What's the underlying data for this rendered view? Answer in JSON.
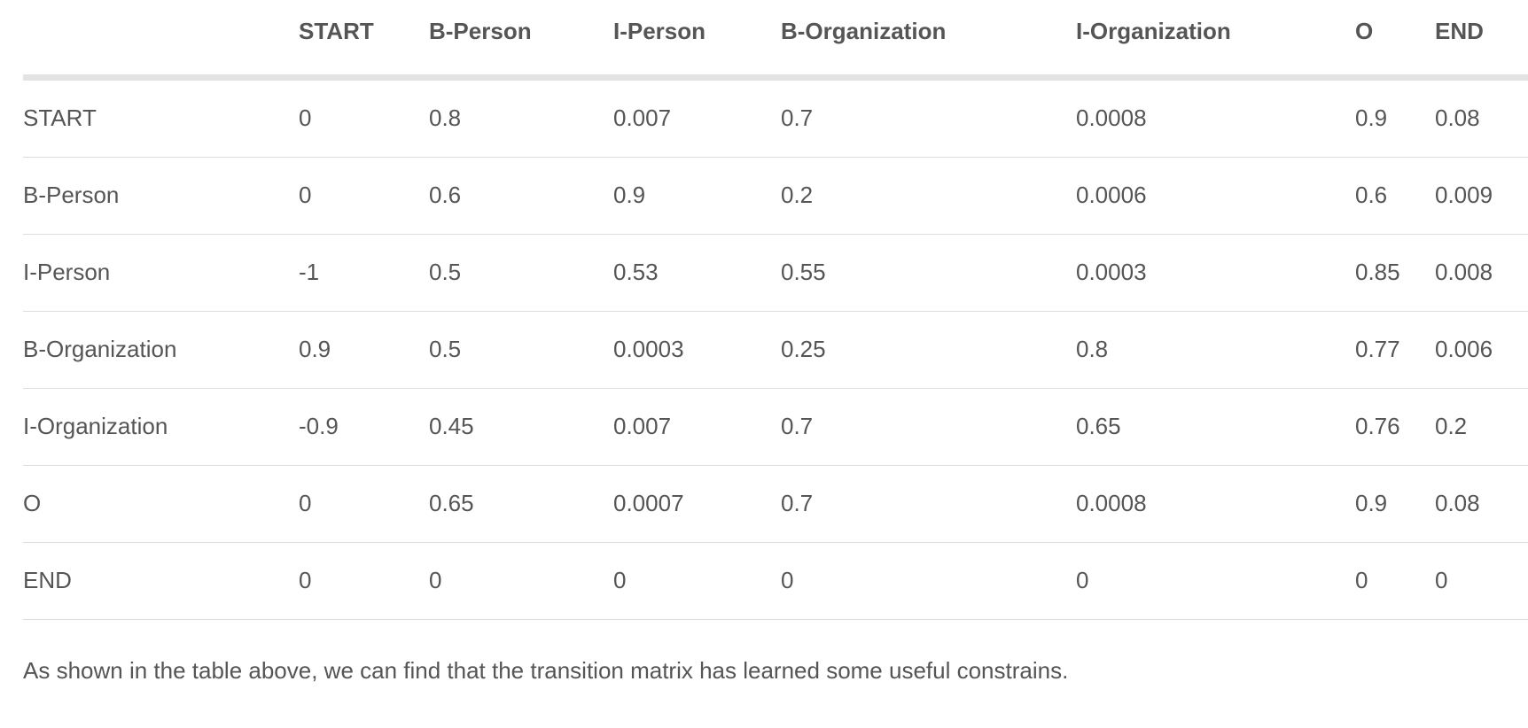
{
  "table": {
    "headers": [
      "",
      "START",
      "B-Person",
      "I-Person",
      "B-Organization",
      "I-Organization",
      "O",
      "END"
    ],
    "rows": [
      [
        "START",
        "0",
        "0.8",
        "0.007",
        "0.7",
        "0.0008",
        "0.9",
        "0.08"
      ],
      [
        "B-Person",
        "0",
        "0.6",
        "0.9",
        "0.2",
        "0.0006",
        "0.6",
        "0.009"
      ],
      [
        "I-Person",
        "-1",
        "0.5",
        "0.53",
        "0.55",
        "0.0003",
        "0.85",
        "0.008"
      ],
      [
        "B-Organization",
        "0.9",
        "0.5",
        "0.0003",
        "0.25",
        "0.8",
        "0.77",
        "0.006"
      ],
      [
        "I-Organization",
        "-0.9",
        "0.45",
        "0.007",
        "0.7",
        "0.65",
        "0.76",
        "0.2"
      ],
      [
        "O",
        "0",
        "0.65",
        "0.0007",
        "0.7",
        "0.0008",
        "0.9",
        "0.08"
      ],
      [
        "END",
        "0",
        "0",
        "0",
        "0",
        "0",
        "0",
        "0"
      ]
    ]
  },
  "caption": "As shown in the table above, we can find that the transition matrix has learned some useful constrains."
}
